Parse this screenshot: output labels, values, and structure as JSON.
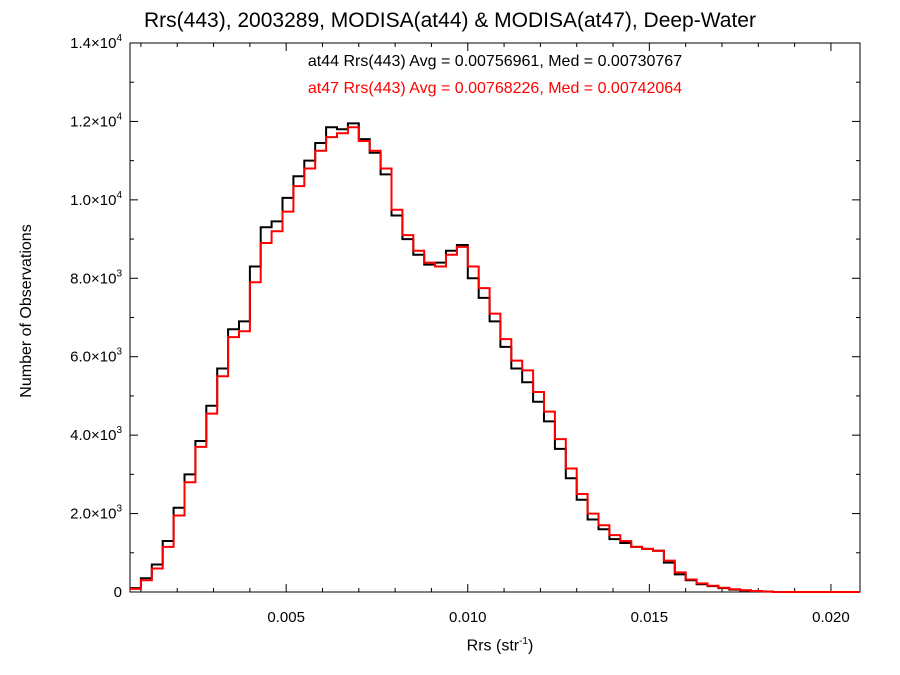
{
  "chart_data": {
    "type": "line",
    "title": "Rrs(443), 2003289, MODISA(at44) & MODISA(at47), Deep-Water",
    "xlabel_main": "Rrs (str",
    "xlabel_sup": "-1",
    "xlabel_close": ")",
    "ylabel": "Number of Observations",
    "xlim": [
      0.0007,
      0.0208
    ],
    "ylim": [
      0,
      14000
    ],
    "xticks": [
      {
        "value": 0.005,
        "label": "0.005"
      },
      {
        "value": 0.01,
        "label": "0.010"
      },
      {
        "value": 0.015,
        "label": "0.015"
      },
      {
        "value": 0.02,
        "label": "0.020"
      }
    ],
    "yticks": [
      {
        "value": 0,
        "mant": "0",
        "exp": ""
      },
      {
        "value": 2000,
        "mant": "2.0×10",
        "exp": "3"
      },
      {
        "value": 4000,
        "mant": "4.0×10",
        "exp": "3"
      },
      {
        "value": 6000,
        "mant": "6.0×10",
        "exp": "3"
      },
      {
        "value": 8000,
        "mant": "8.0×10",
        "exp": "3"
      },
      {
        "value": 10000,
        "mant": "1.0×10",
        "exp": "4"
      },
      {
        "value": 12000,
        "mant": "1.2×10",
        "exp": "4"
      },
      {
        "value": 14000,
        "mant": "1.4×10",
        "exp": "4"
      }
    ],
    "series": [
      {
        "name": "at44",
        "stat_text": "at44 Rrs(443) Avg = 0.00756961, Med = 0.00730767",
        "color": "#000000",
        "x": [
          0.0007,
          0.001,
          0.0013,
          0.0016,
          0.0019,
          0.0022,
          0.0025,
          0.0028,
          0.0031,
          0.0034,
          0.0037,
          0.004,
          0.0043,
          0.0046,
          0.0049,
          0.0052,
          0.0055,
          0.0058,
          0.0061,
          0.0064,
          0.0067,
          0.007,
          0.0073,
          0.0076,
          0.0079,
          0.0082,
          0.0085,
          0.0088,
          0.0091,
          0.0094,
          0.0097,
          0.01,
          0.0103,
          0.0106,
          0.0109,
          0.0112,
          0.0115,
          0.0118,
          0.0121,
          0.0124,
          0.0127,
          0.013,
          0.0133,
          0.0136,
          0.0139,
          0.0142,
          0.0145,
          0.0148,
          0.0151,
          0.0154,
          0.0157,
          0.016,
          0.0163,
          0.0166,
          0.0169,
          0.0172,
          0.0175,
          0.0178,
          0.0181,
          0.0184,
          0.019,
          0.02,
          0.0208
        ],
        "y": [
          100,
          350,
          700,
          1300,
          2150,
          3000,
          3850,
          4750,
          5700,
          6700,
          6900,
          8300,
          9300,
          9450,
          10050,
          10600,
          11000,
          11450,
          11850,
          11800,
          11950,
          11550,
          11200,
          10650,
          9600,
          9000,
          8600,
          8350,
          8400,
          8700,
          8850,
          8000,
          7500,
          6900,
          6250,
          5700,
          5350,
          4850,
          4350,
          3650,
          2900,
          2350,
          1850,
          1600,
          1350,
          1250,
          1150,
          1100,
          1050,
          750,
          450,
          300,
          200,
          150,
          100,
          60,
          40,
          20,
          10,
          0,
          0,
          0,
          0
        ]
      },
      {
        "name": "at47",
        "stat_text": "at47 Rrs(443) Avg = 0.00768226, Med = 0.00742064",
        "color": "#ff0000",
        "x": [
          0.0007,
          0.001,
          0.0013,
          0.0016,
          0.0019,
          0.0022,
          0.0025,
          0.0028,
          0.0031,
          0.0034,
          0.0037,
          0.004,
          0.0043,
          0.0046,
          0.0049,
          0.0052,
          0.0055,
          0.0058,
          0.0061,
          0.0064,
          0.0067,
          0.007,
          0.0073,
          0.0076,
          0.0079,
          0.0082,
          0.0085,
          0.0088,
          0.0091,
          0.0094,
          0.0097,
          0.01,
          0.0103,
          0.0106,
          0.0109,
          0.0112,
          0.0115,
          0.0118,
          0.0121,
          0.0124,
          0.0127,
          0.013,
          0.0133,
          0.0136,
          0.0139,
          0.0142,
          0.0145,
          0.0148,
          0.0151,
          0.0154,
          0.0157,
          0.016,
          0.0163,
          0.0166,
          0.0169,
          0.0172,
          0.0175,
          0.0178,
          0.0181,
          0.0184,
          0.019,
          0.02,
          0.0208
        ],
        "y": [
          80,
          300,
          600,
          1150,
          1950,
          2800,
          3700,
          4550,
          5500,
          6500,
          6650,
          7900,
          8900,
          9200,
          9700,
          10350,
          10800,
          11250,
          11600,
          11700,
          11850,
          11500,
          11250,
          10800,
          9750,
          9100,
          8700,
          8400,
          8300,
          8600,
          8800,
          8300,
          7750,
          7100,
          6450,
          5900,
          5650,
          5100,
          4600,
          3900,
          3150,
          2500,
          2000,
          1700,
          1450,
          1300,
          1150,
          1100,
          1050,
          800,
          500,
          320,
          220,
          160,
          110,
          70,
          45,
          25,
          12,
          0,
          0,
          0,
          0
        ]
      }
    ]
  }
}
